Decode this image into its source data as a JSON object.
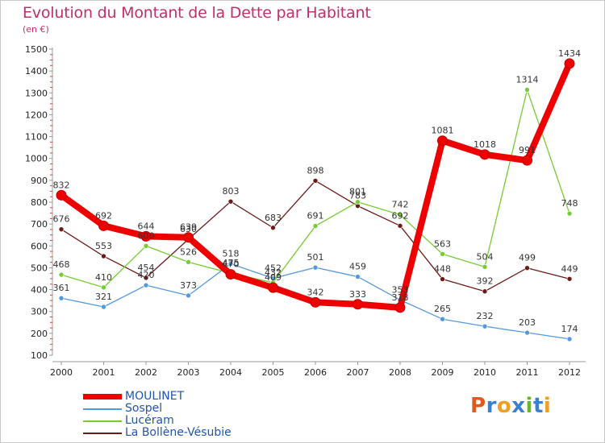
{
  "header": {
    "title": "Evolution du Montant de la Dette par Habitant",
    "subtitle": "(en €)"
  },
  "logo": {
    "letters": [
      "P",
      "r",
      "o",
      "x",
      "i",
      "t",
      "i"
    ],
    "colors": [
      "#e05a1e",
      "#3a7fd0",
      "#f0a020",
      "#3a7fd0",
      "#6ab82a",
      "#3a7fd0",
      "#f0a020"
    ]
  },
  "chart_data": {
    "type": "line",
    "title": "Evolution du Montant de la Dette par Habitant",
    "ylabel": "(en €)",
    "xlabel": "",
    "x": [
      "2000",
      "2001",
      "2002",
      "2003",
      "2004",
      "2005",
      "2006",
      "2007",
      "2008",
      "2009",
      "2010",
      "2011",
      "2012"
    ],
    "ylim": [
      100,
      1500
    ],
    "yticks": [
      100,
      200,
      300,
      400,
      500,
      600,
      700,
      800,
      900,
      1000,
      1100,
      1200,
      1300,
      1400,
      1500
    ],
    "grid": false,
    "legend": "bottom-left",
    "series": [
      {
        "name": "MOULINET",
        "color": "#ee0000",
        "values": [
          832,
          692,
          644,
          639,
          470,
          409,
          342,
          333,
          318,
          1081,
          1018,
          991,
          1434
        ]
      },
      {
        "name": "Sospel",
        "color": "#5599dd",
        "values": [
          361,
          321,
          420,
          373,
          518,
          452,
          501,
          459,
          353,
          265,
          232,
          203,
          174
        ]
      },
      {
        "name": "Lucéram",
        "color": "#77cc33",
        "values": [
          468,
          410,
          600,
          526,
          475,
          432,
          691,
          801,
          742,
          563,
          504,
          1314,
          748
        ]
      },
      {
        "name": "La Bollène-Vésubie",
        "color": "#6b1a1a",
        "values": [
          676,
          553,
          454,
          630,
          803,
          683,
          898,
          783,
          692,
          448,
          392,
          499,
          449
        ]
      }
    ],
    "labels": [
      {
        "series": "MOULINET",
        "values": [
          "832",
          "692",
          "644",
          "639",
          "470",
          "409",
          "342",
          "333",
          "318",
          "1081",
          "1018",
          "991",
          "1434"
        ]
      },
      {
        "series": "Sospel",
        "values": [
          "361",
          "321",
          "420",
          "373",
          "518",
          "452",
          "501",
          "459",
          "353",
          "265",
          "232",
          "203",
          "174"
        ]
      },
      {
        "series": "Lucéram",
        "values": [
          "468",
          "410",
          "600",
          "526",
          "475",
          "432",
          "691",
          "801",
          "742",
          "563",
          "504",
          "1314",
          "748"
        ]
      },
      {
        "series": "La Bollène-Vésubie",
        "values": [
          "676",
          "553",
          "454",
          "630",
          "803",
          "683",
          "898",
          "783",
          "692",
          "448",
          "392",
          "499",
          "449"
        ]
      }
    ]
  }
}
